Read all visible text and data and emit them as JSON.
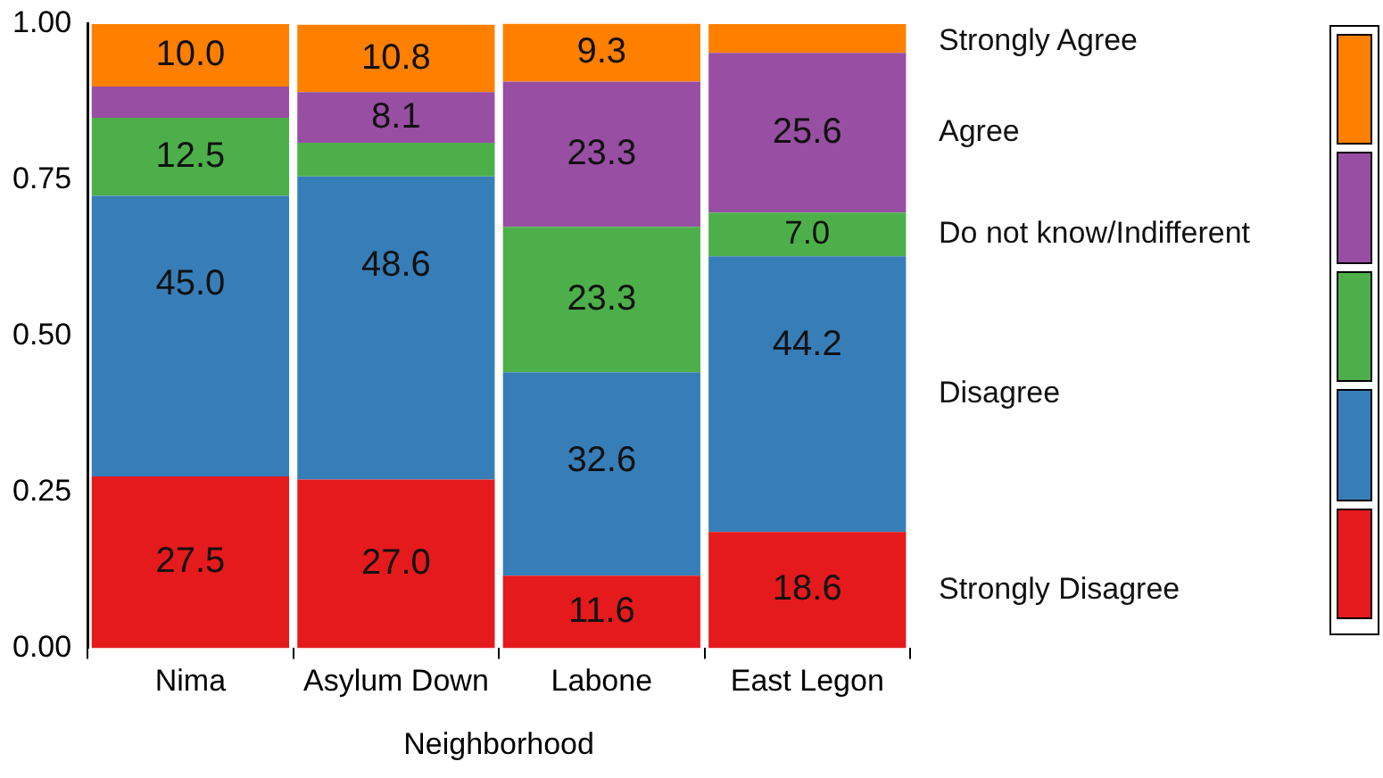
{
  "chart_data": {
    "type": "bar",
    "stacked": true,
    "xlabel": "Neighborhood",
    "categories": [
      "Nima",
      "Asylum Down",
      "Labone",
      "East Legon"
    ],
    "ylim": [
      0,
      1.001
    ],
    "yticks": [
      {
        "value": 0,
        "label": "0.00"
      },
      {
        "value": 0.25,
        "label": "0.25"
      },
      {
        "value": 0.5,
        "label": "0.50"
      },
      {
        "value": 0.75,
        "label": "0.75"
      },
      {
        "value": 1,
        "label": "1.00"
      }
    ],
    "grid": false,
    "legend": false,
    "series": [
      {
        "name": "Strongly Disagree",
        "color": "#e41a1c",
        "values": [
          0.275,
          0.27,
          0.116,
          0.186
        ]
      },
      {
        "name": "Disagree",
        "color": "#377eb8",
        "values": [
          0.45,
          0.486,
          0.326,
          0.442
        ]
      },
      {
        "name": "Do not know/Indifferent",
        "color": "#4daf4a",
        "values": [
          0.125,
          0.054,
          0.233,
          0.07
        ]
      },
      {
        "name": "Agree",
        "color": "#984ea3",
        "values": [
          0.05,
          0.081,
          0.233,
          0.256
        ]
      },
      {
        "name": "Strongly Agree",
        "color": "#ff7f00",
        "values": [
          0.1,
          0.108,
          0.093,
          0.046
        ]
      }
    ],
    "annotations": [
      {
        "text": "27.5",
        "x": "Nima",
        "y": 0.275
      },
      {
        "text": "27.0",
        "x": "Asylum Down",
        "y": 0.27
      },
      {
        "text": "11.6",
        "x": "Labone",
        "y": 0.116
      },
      {
        "text": "18.6",
        "x": "East Legon",
        "y": 0.186
      },
      {
        "text": "45.0",
        "x": "Nima",
        "y": 0.725
      },
      {
        "text": "48.6",
        "x": "Asylum Down",
        "y": 0.756
      },
      {
        "text": "32.6",
        "x": "Labone",
        "y": 0.442
      },
      {
        "text": "44.2",
        "x": "East Legon",
        "y": 0.628
      },
      {
        "text": "12.5",
        "x": "Nima",
        "y": 0.85
      },
      {
        "text": "23.3",
        "x": "Labone",
        "y": 0.675
      },
      {
        "text": "7.0",
        "x": "East Legon",
        "y": 0.698
      },
      {
        "text": "8.1",
        "x": "Asylum Down",
        "y": 0.891
      },
      {
        "text": "23.3",
        "x": "Labone",
        "y": 0.908
      },
      {
        "text": "25.6",
        "x": "East Legon",
        "y": 0.954
      },
      {
        "text": "10.0",
        "x": "Nima",
        "y": 1.0
      },
      {
        "text": "10.8",
        "x": "Asylum Down",
        "y": 0.999
      },
      {
        "text": "9.3",
        "x": "Labone",
        "y": 1.001
      }
    ]
  }
}
